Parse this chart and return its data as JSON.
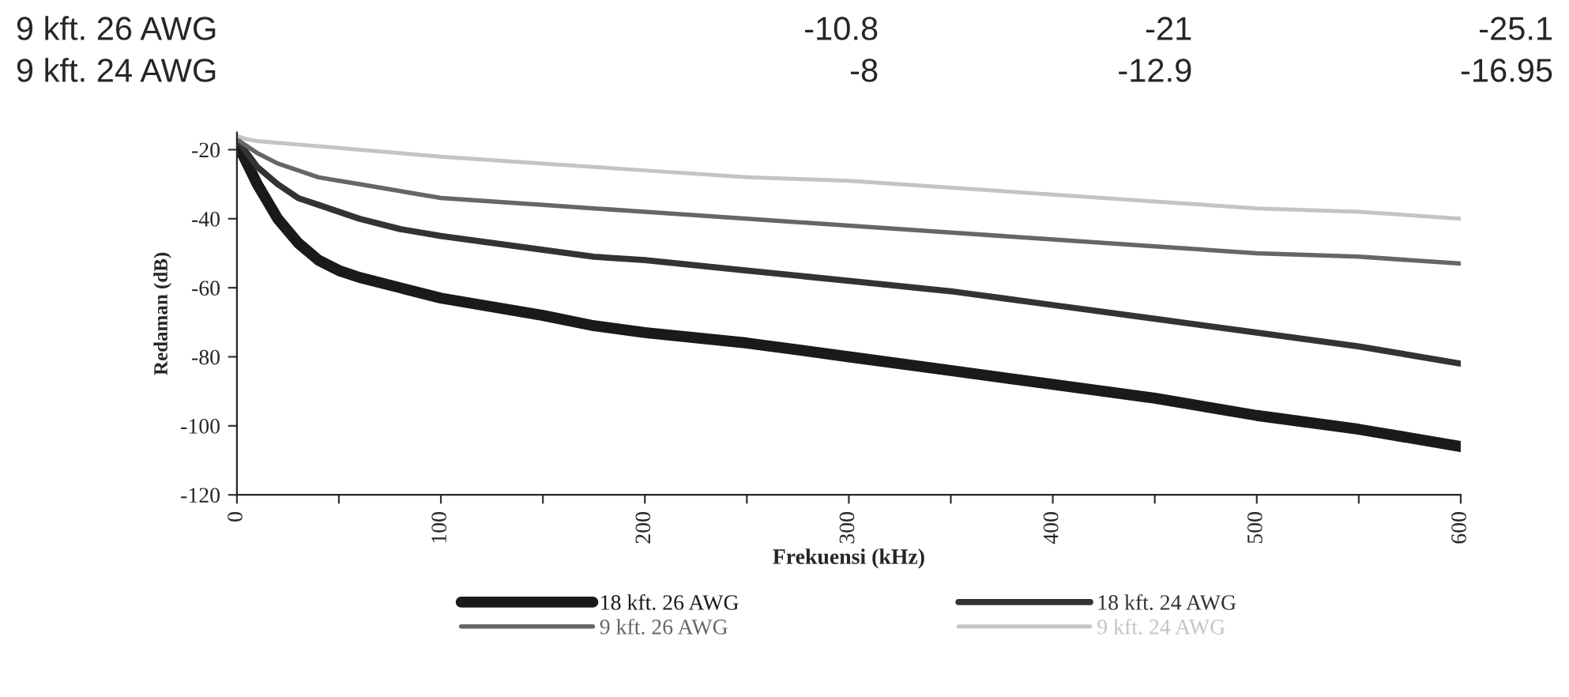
{
  "chart_data": {
    "type": "line",
    "xlabel": "Frekuensi (kHz)",
    "ylabel": "Redaman (dB)",
    "annotations": [
      "9 kft. 26 AWG",
      "-10.8",
      "-21",
      "-25.1",
      "9 kft. 24 AWG",
      "-8",
      "-12.9",
      "-16.95"
    ],
    "xlim": [
      0,
      600
    ],
    "ylim": [
      -120,
      -15
    ],
    "xticks": [
      0,
      {
        "value": 50,
        "label": null
      },
      100,
      {
        "value": 150,
        "label": null
      },
      200,
      {
        "value": 250,
        "label": null
      },
      300,
      {
        "value": 350,
        "label": null
      },
      400,
      {
        "value": 450,
        "label": null
      },
      500,
      {
        "value": 550,
        "label": null
      },
      600
    ],
    "yticks": [
      -120,
      -100,
      -80,
      -60,
      -40,
      -20
    ],
    "x": [
      0,
      5,
      10,
      20,
      30,
      40,
      50,
      60,
      80,
      100,
      150,
      175,
      200,
      250,
      300,
      350,
      400,
      450,
      500,
      550,
      600
    ],
    "series": [
      {
        "name": "18 kft. 26 AWG",
        "color": "#1a1a1a",
        "values": [
          -18,
          -24,
          -30,
          -40,
          -47,
          -52,
          -55,
          -57,
          -60,
          -63,
          -68,
          -71,
          -73,
          -76,
          -80,
          -84,
          -88,
          -92,
          -97,
          -101,
          -106
        ]
      },
      {
        "name": "18 kft. 24 AWG",
        "color": "#333333",
        "values": [
          -17,
          -21,
          -25,
          -30,
          -34,
          -36,
          -38,
          -40,
          -43,
          -45,
          -49,
          -51,
          -52,
          -55,
          -58,
          -61,
          -65,
          -69,
          -73,
          -77,
          -82
        ]
      },
      {
        "name": "9 kft. 26 AWG",
        "color": "#666666",
        "values": [
          -17,
          -19,
          -21,
          -24,
          -26,
          -28,
          -29,
          -30,
          -32,
          -34,
          -36,
          -37,
          -38,
          -40,
          -42,
          -44,
          -46,
          -48,
          -50,
          -51,
          -53
        ]
      },
      {
        "name": "9 kft. 24 AWG",
        "color": "#c4c4c4",
        "values": [
          -16,
          -17,
          -17.5,
          -18,
          -18.5,
          -19,
          -19.5,
          -20,
          -21,
          -22,
          -24,
          -25,
          -26,
          -28,
          -29,
          -31,
          -33,
          -35,
          -37,
          -38,
          -40
        ]
      }
    ],
    "legend": "bottom",
    "grid": false,
    "marker": "none",
    "line_style": "solid"
  }
}
